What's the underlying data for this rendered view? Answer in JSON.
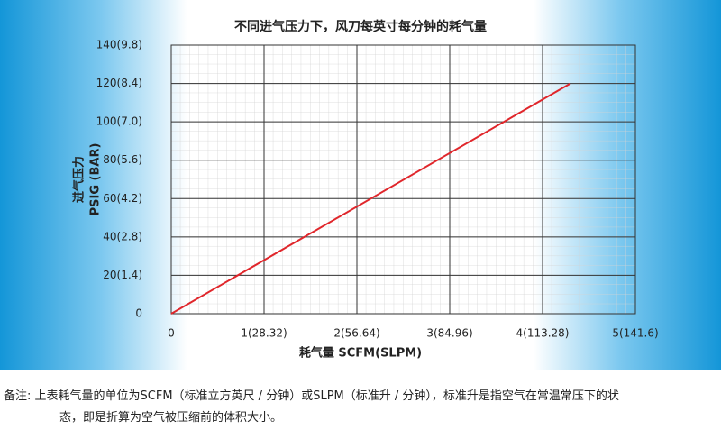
{
  "chart_data": {
    "type": "line",
    "title": "不同进气压力下，风刀每英寸每分钟的耗气量",
    "xlabel": "耗气量  SCFM(SLPM)",
    "ylabel": [
      "进气压力",
      "PSIG (BAR)"
    ],
    "x": [
      0,
      4.3
    ],
    "series": [
      {
        "name": "进气压力",
        "color": "#e0262b",
        "values": [
          0,
          120
        ]
      }
    ],
    "xlim": [
      0,
      5
    ],
    "xticks": [
      0,
      {
        "value": 1,
        "label": "1(28.32)"
      },
      {
        "value": 2,
        "label": "2(56.64)"
      },
      {
        "value": 3,
        "label": "3(84.96)"
      },
      {
        "value": 4,
        "label": "4(113.28)"
      },
      {
        "value": 5,
        "label": "5(141.6)"
      }
    ],
    "ylim": [
      0,
      140
    ],
    "yticks": [
      0,
      {
        "value": 20,
        "label": "20(1.4)"
      },
      {
        "value": 40,
        "label": "40(2.8)"
      },
      {
        "value": 60,
        "label": "60(4.2)"
      },
      {
        "value": 80,
        "label": "80(5.6)"
      },
      {
        "value": 100,
        "label": "100(7.0)"
      },
      {
        "value": 120,
        "label": "120(8.4)"
      },
      {
        "value": 140,
        "label": "140(9.8)"
      }
    ],
    "grid": true
  },
  "note": {
    "label": "备注:",
    "lines": [
      "上表耗气量的单位为SCFM（标准立方英尺 / 分钟）或SLPM（标准升 / 分钟），标准升是指空气在常温常压下的状",
      "态，即是折算为空气被压缩前的体积大小。"
    ]
  }
}
